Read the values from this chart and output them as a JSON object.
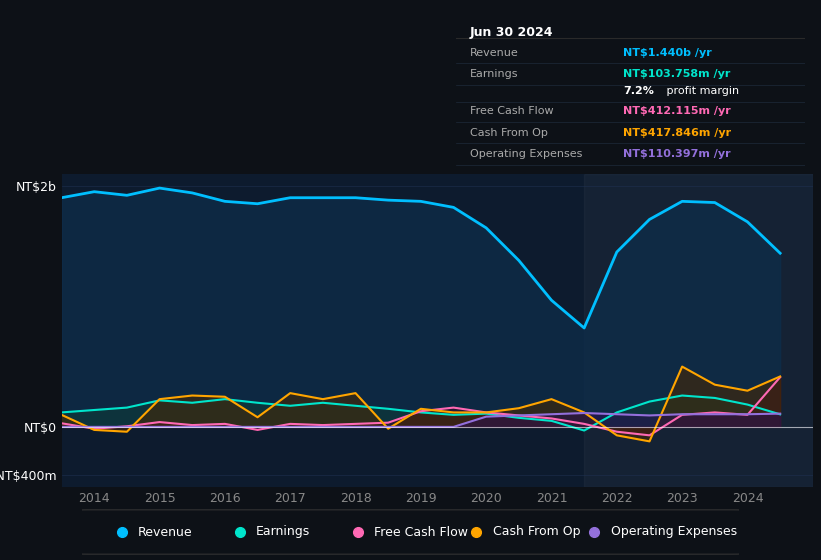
{
  "background_color": "#0d1117",
  "plot_bg_color": "#0d1b2e",
  "title_box_date": "Jun 30 2024",
  "tooltip": {
    "Revenue": {
      "value": "NT$1.440b",
      "color": "#00bfff"
    },
    "Earnings": {
      "value": "NT$103.758m",
      "color": "#00e5cc"
    },
    "profit_margin": "7.2%",
    "Free Cash Flow": {
      "value": "NT$412.115m",
      "color": "#ff69b4"
    },
    "Cash From Op": {
      "value": "NT$417.846m",
      "color": "#ffa500"
    },
    "Operating Expenses": {
      "value": "NT$110.397m",
      "color": "#9370db"
    }
  },
  "years": [
    2013.5,
    2014.0,
    2014.5,
    2015.0,
    2015.5,
    2016.0,
    2016.5,
    2017.0,
    2017.5,
    2018.0,
    2018.5,
    2019.0,
    2019.5,
    2020.0,
    2020.5,
    2021.0,
    2021.5,
    2022.0,
    2022.5,
    2023.0,
    2023.5,
    2024.0,
    2024.5
  ],
  "revenue": [
    1900,
    1950,
    1920,
    1980,
    1940,
    1870,
    1850,
    1900,
    1900,
    1900,
    1880,
    1870,
    1820,
    1650,
    1380,
    1050,
    820,
    1450,
    1720,
    1870,
    1860,
    1700,
    1440
  ],
  "earnings": [
    120,
    140,
    160,
    220,
    200,
    230,
    200,
    175,
    200,
    175,
    150,
    120,
    100,
    110,
    75,
    50,
    -30,
    120,
    210,
    260,
    240,
    185,
    104
  ],
  "free_cash_flow": [
    30,
    -15,
    5,
    40,
    15,
    25,
    -25,
    25,
    15,
    25,
    35,
    130,
    160,
    120,
    95,
    70,
    25,
    -40,
    -70,
    100,
    120,
    100,
    412
  ],
  "cash_from_op": [
    100,
    -25,
    -40,
    230,
    260,
    250,
    80,
    280,
    230,
    280,
    -15,
    150,
    120,
    120,
    155,
    230,
    120,
    -70,
    -120,
    500,
    350,
    300,
    418
  ],
  "operating_expenses": [
    0,
    0,
    0,
    0,
    0,
    0,
    0,
    0,
    0,
    0,
    0,
    0,
    0,
    85,
    95,
    105,
    115,
    105,
    95,
    105,
    105,
    105,
    110
  ],
  "colors": {
    "revenue": "#00bfff",
    "revenue_fill": "#0d2d4a",
    "earnings": "#00e5cc",
    "earnings_fill": "#0d3a3a",
    "free_cash_flow": "#ff69b4",
    "free_cash_flow_fill": "#3a0d28",
    "cash_from_op": "#ffa500",
    "cash_from_op_fill": "#4a2800",
    "operating_expenses": "#9370db",
    "operating_expenses_fill": "#2a1050"
  },
  "legend": [
    {
      "label": "Revenue",
      "color": "#00bfff"
    },
    {
      "label": "Earnings",
      "color": "#00e5cc"
    },
    {
      "label": "Free Cash Flow",
      "color": "#ff69b4"
    },
    {
      "label": "Cash From Op",
      "color": "#ffa500"
    },
    {
      "label": "Operating Expenses",
      "color": "#9370db"
    }
  ],
  "xlim": [
    2013.5,
    2025.0
  ],
  "ylim_min": -500,
  "ylim_max": 2100,
  "ytick_top_val": 2000,
  "ytick_top_label": "NT$2b",
  "ytick_zero_label": "NT$0",
  "ytick_bottom_val": -400,
  "ytick_bottom_label": "-NT$400m",
  "xticks": [
    2014,
    2015,
    2016,
    2017,
    2018,
    2019,
    2020,
    2021,
    2022,
    2023,
    2024
  ],
  "grid_color": "#1e3050",
  "tick_color": "#888888",
  "legend_bg": "#0d1117",
  "legend_border": "#333333",
  "tooltip_bg": "#050a0f",
  "tooltip_border": "#333333"
}
